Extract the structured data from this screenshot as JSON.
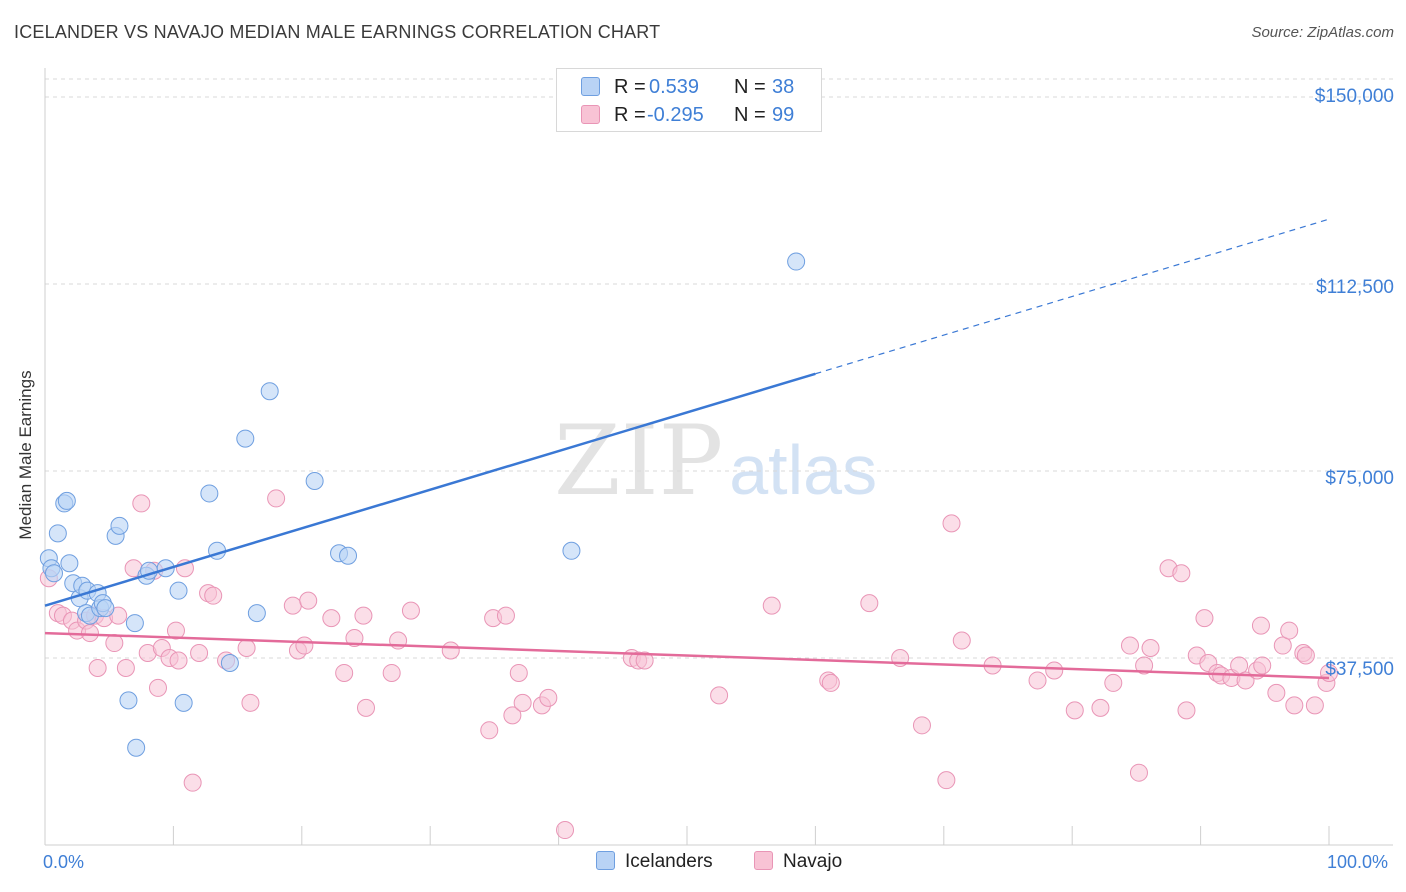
{
  "title": "ICELANDER VS NAVAJO MEDIAN MALE EARNINGS CORRELATION CHART",
  "source": "Source: ZipAtlas.com",
  "watermark": {
    "zip": "ZIP",
    "atlas": "atlas"
  },
  "colors": {
    "blue": "#3a78d4",
    "blue_fill": "#b9d3f5",
    "blue_stroke": "#6f9fe0",
    "pink": "#e36b9a",
    "pink_fill": "#f8c3d5",
    "pink_stroke": "#e995b6",
    "grid": "#d8d8d8",
    "label_blue": "#3f7fd6"
  },
  "legend_top": [
    {
      "r_label": "R =",
      "r_value": "0.539",
      "n_label": "N =",
      "n_value": "38"
    },
    {
      "r_label": "R =",
      "r_value": "-0.295",
      "n_label": "N =",
      "n_value": "99"
    }
  ],
  "legend_bottom": [
    "Icelanders",
    "Navajo"
  ],
  "chart_data": {
    "type": "scatter",
    "title": "ICELANDER VS NAVAJO MEDIAN MALE EARNINGS CORRELATION CHART",
    "xlabel": "",
    "ylabel": "Median Male Earnings",
    "xlim": [
      0,
      100
    ],
    "ylim": [
      0,
      155000
    ],
    "x_tick_labels": [
      "0.0%",
      "100.0%"
    ],
    "y_ticks": [
      37500,
      75000,
      112500,
      150000
    ],
    "y_tick_labels": [
      "$37,500",
      "$75,000",
      "$112,500",
      "$150,000"
    ],
    "series": [
      {
        "name": "Icelanders",
        "points": [
          [
            0.3,
            57500
          ],
          [
            0.5,
            55500
          ],
          [
            0.7,
            54500
          ],
          [
            1.0,
            62500
          ],
          [
            1.5,
            68500
          ],
          [
            1.7,
            69000
          ],
          [
            1.9,
            56500
          ],
          [
            2.2,
            52500
          ],
          [
            2.7,
            49500
          ],
          [
            2.9,
            52000
          ],
          [
            3.2,
            46500
          ],
          [
            3.3,
            51000
          ],
          [
            3.5,
            46000
          ],
          [
            4.1,
            50500
          ],
          [
            4.3,
            47500
          ],
          [
            4.5,
            48500
          ],
          [
            4.7,
            47500
          ],
          [
            5.5,
            62000
          ],
          [
            5.8,
            64000
          ],
          [
            6.5,
            29000
          ],
          [
            7.0,
            44500
          ],
          [
            7.1,
            19500
          ],
          [
            7.9,
            54000
          ],
          [
            8.1,
            55000
          ],
          [
            9.4,
            55500
          ],
          [
            10.4,
            51000
          ],
          [
            10.8,
            28500
          ],
          [
            12.8,
            70500
          ],
          [
            13.4,
            59000
          ],
          [
            14.4,
            36500
          ],
          [
            16.5,
            46500
          ],
          [
            17.5,
            91000
          ],
          [
            15.6,
            81500
          ],
          [
            21.0,
            73000
          ],
          [
            22.9,
            58500
          ],
          [
            23.6,
            58000
          ],
          [
            41.0,
            59000
          ],
          [
            58.5,
            117000
          ]
        ]
      },
      {
        "name": "Navajo",
        "points": [
          [
            0.3,
            53500
          ],
          [
            1.0,
            46500
          ],
          [
            1.4,
            46000
          ],
          [
            2.1,
            45000
          ],
          [
            2.5,
            43000
          ],
          [
            3.2,
            45000
          ],
          [
            3.5,
            42500
          ],
          [
            3.9,
            46000
          ],
          [
            4.1,
            35500
          ],
          [
            4.6,
            45500
          ],
          [
            5.4,
            40500
          ],
          [
            5.7,
            46000
          ],
          [
            6.3,
            35500
          ],
          [
            6.9,
            55500
          ],
          [
            7.5,
            68500
          ],
          [
            8.0,
            38500
          ],
          [
            8.5,
            55000
          ],
          [
            8.8,
            31500
          ],
          [
            9.1,
            39500
          ],
          [
            9.7,
            37500
          ],
          [
            10.2,
            43000
          ],
          [
            10.4,
            37000
          ],
          [
            10.9,
            55500
          ],
          [
            11.5,
            12500
          ],
          [
            12.0,
            38500
          ],
          [
            12.7,
            50500
          ],
          [
            13.1,
            50000
          ],
          [
            14.1,
            37000
          ],
          [
            15.7,
            39500
          ],
          [
            16.0,
            28500
          ],
          [
            18.0,
            69500
          ],
          [
            19.3,
            48000
          ],
          [
            19.7,
            39000
          ],
          [
            20.2,
            40000
          ],
          [
            20.5,
            49000
          ],
          [
            22.3,
            45500
          ],
          [
            23.3,
            34500
          ],
          [
            24.1,
            41500
          ],
          [
            24.8,
            46000
          ],
          [
            25.0,
            27500
          ],
          [
            27.0,
            34500
          ],
          [
            27.5,
            41000
          ],
          [
            28.5,
            47000
          ],
          [
            31.6,
            39000
          ],
          [
            34.6,
            23000
          ],
          [
            34.9,
            45500
          ],
          [
            35.9,
            46000
          ],
          [
            36.4,
            26000
          ],
          [
            36.9,
            34500
          ],
          [
            37.2,
            28500
          ],
          [
            38.7,
            28000
          ],
          [
            39.2,
            29500
          ],
          [
            40.5,
            3000
          ],
          [
            45.7,
            37500
          ],
          [
            46.2,
            37000
          ],
          [
            46.7,
            37000
          ],
          [
            52.5,
            30000
          ],
          [
            56.6,
            48000
          ],
          [
            61.0,
            33000
          ],
          [
            61.2,
            32500
          ],
          [
            64.2,
            48500
          ],
          [
            66.6,
            37500
          ],
          [
            68.3,
            24000
          ],
          [
            70.2,
            13000
          ],
          [
            70.6,
            64500
          ],
          [
            71.4,
            41000
          ],
          [
            73.8,
            36000
          ],
          [
            77.3,
            33000
          ],
          [
            78.6,
            35000
          ],
          [
            80.2,
            27000
          ],
          [
            82.2,
            27500
          ],
          [
            83.2,
            32500
          ],
          [
            84.5,
            40000
          ],
          [
            85.2,
            14500
          ],
          [
            85.6,
            36000
          ],
          [
            86.1,
            39500
          ],
          [
            87.5,
            55500
          ],
          [
            88.5,
            54500
          ],
          [
            88.9,
            27000
          ],
          [
            89.7,
            38000
          ],
          [
            90.3,
            45500
          ],
          [
            90.6,
            36500
          ],
          [
            91.3,
            34500
          ],
          [
            91.6,
            34000
          ],
          [
            92.4,
            33500
          ],
          [
            93.0,
            36000
          ],
          [
            93.5,
            33000
          ],
          [
            94.4,
            35000
          ],
          [
            94.8,
            36000
          ],
          [
            94.7,
            44000
          ],
          [
            95.9,
            30500
          ],
          [
            96.4,
            40000
          ],
          [
            96.9,
            43000
          ],
          [
            97.3,
            28000
          ],
          [
            98.0,
            38500
          ],
          [
            98.2,
            38000
          ],
          [
            98.9,
            28000
          ],
          [
            99.8,
            32500
          ],
          [
            100.0,
            34500
          ]
        ]
      }
    ],
    "trend_lines": [
      {
        "series": "Icelanders",
        "x0": 0,
        "y0": 48000,
        "x_solid_end": 60,
        "x1": 100,
        "y1": 125500,
        "dashed_after_solid": true
      },
      {
        "series": "Navajo",
        "x0": 0,
        "y0": 42500,
        "x1": 100,
        "y1": 33500
      }
    ]
  }
}
